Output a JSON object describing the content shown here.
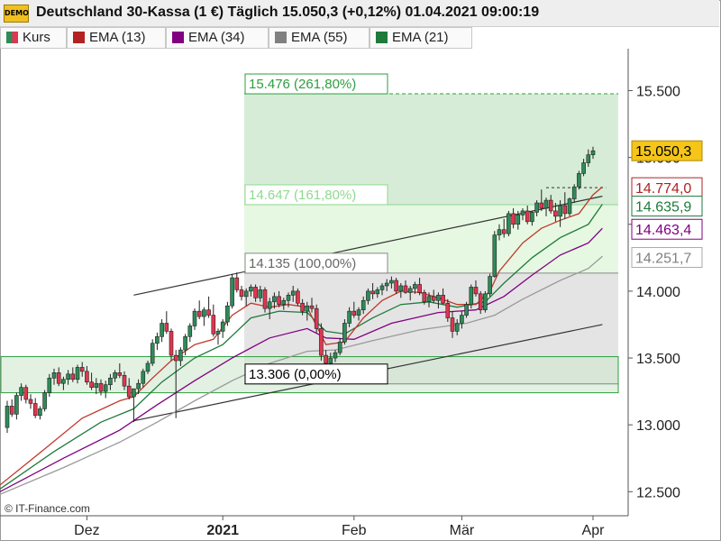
{
  "window": {
    "badge": "DEMO",
    "title": "Deutschland 30-Kassa (1 €) Täglich 15.050,3 (+0,12%) 01.04.2021 09:00:19"
  },
  "legend": [
    {
      "label": "Kurs",
      "color": "#2e8b57"
    },
    {
      "label": "EMA (13)",
      "color": "#b22222"
    },
    {
      "label": "EMA (34)",
      "color": "#800080"
    },
    {
      "label": "EMA (55)",
      "color": "#808080"
    },
    {
      "label": "EMA (21)",
      "color": "#1f7a3c"
    }
  ],
  "copyright": "© IT-Finance.com",
  "chart_data": {
    "type": "candlestick",
    "y_range": [
      12320,
      15800
    ],
    "y_ticks": [
      {
        "value": 12500,
        "label": "12.500"
      },
      {
        "value": 13000,
        "label": "13.000"
      },
      {
        "value": 13500,
        "label": "13.500"
      },
      {
        "value": 14000,
        "label": "14.000"
      },
      {
        "value": 14500,
        "label": "14.500"
      },
      {
        "value": 15000,
        "label": "15.000"
      },
      {
        "value": 15500,
        "label": "15.500"
      }
    ],
    "x_labels": [
      {
        "label": "Dez",
        "index": 17,
        "bold": false
      },
      {
        "label": "2021",
        "index": 46,
        "bold": true
      },
      {
        "label": "Feb",
        "index": 74,
        "bold": false
      },
      {
        "label": "Mär",
        "index": 97,
        "bold": false
      },
      {
        "label": "Apr",
        "index": 125,
        "bold": false
      }
    ],
    "price_tags": [
      {
        "label": "15.050,3",
        "value": 15050,
        "bg": "#f5c518",
        "fg": "#000000",
        "border": "#b08800"
      },
      {
        "label": "14.774,0",
        "value": 14774,
        "bg": "#ffffff",
        "fg": "#b22222",
        "border": "#b22222"
      },
      {
        "label": "14.635,9",
        "value": 14636,
        "bg": "#ffffff",
        "fg": "#1f7a3c",
        "border": "#1f7a3c"
      },
      {
        "label": "14.463,4",
        "value": 14463,
        "bg": "#ffffff",
        "fg": "#800080",
        "border": "#800080"
      },
      {
        "label": "14.251,7",
        "value": 14252,
        "bg": "#ffffff",
        "fg": "#808080",
        "border": "#aaaaaa"
      }
    ],
    "fib_levels": [
      {
        "label": "15.476 (261,80%)",
        "value": 15476,
        "color": "#2e9e40"
      },
      {
        "label": "14.647 (161,80%)",
        "value": 14647,
        "color": "#8fd98f"
      },
      {
        "label": "14.135 (100,00%)",
        "value": 14135,
        "color": "#888888"
      },
      {
        "label": "13.306 (0,00%)",
        "value": 13306,
        "color": "#000000"
      }
    ],
    "support_zone": [
      13240,
      13510
    ],
    "trend_lines": [
      {
        "from": [
          27,
          13970
        ],
        "to": [
          127,
          14710
        ]
      },
      {
        "from": [
          27,
          13030
        ],
        "to": [
          127,
          13750
        ]
      }
    ],
    "candles": [
      [
        12980,
        13180,
        12940,
        13140
      ],
      [
        13140,
        13190,
        13060,
        13080
      ],
      [
        13080,
        13240,
        13040,
        13220
      ],
      [
        13220,
        13310,
        13180,
        13280
      ],
      [
        13280,
        13300,
        13160,
        13190
      ],
      [
        13190,
        13230,
        13120,
        13160
      ],
      [
        13160,
        13200,
        13050,
        13070
      ],
      [
        13070,
        13140,
        13040,
        13120
      ],
      [
        13120,
        13260,
        13100,
        13240
      ],
      [
        13240,
        13380,
        13210,
        13350
      ],
      [
        13350,
        13420,
        13300,
        13390
      ],
      [
        13390,
        13430,
        13290,
        13310
      ],
      [
        13310,
        13360,
        13260,
        13340
      ],
      [
        13340,
        13410,
        13300,
        13380
      ],
      [
        13380,
        13430,
        13320,
        13340
      ],
      [
        13340,
        13450,
        13310,
        13430
      ],
      [
        13430,
        13470,
        13360,
        13400
      ],
      [
        13400,
        13440,
        13300,
        13320
      ],
      [
        13320,
        13390,
        13260,
        13280
      ],
      [
        13280,
        13350,
        13230,
        13310
      ],
      [
        13310,
        13340,
        13220,
        13250
      ],
      [
        13250,
        13330,
        13200,
        13300
      ],
      [
        13300,
        13380,
        13260,
        13350
      ],
      [
        13350,
        13410,
        13320,
        13390
      ],
      [
        13390,
        13460,
        13350,
        13370
      ],
      [
        13370,
        13400,
        13260,
        13290
      ],
      [
        13290,
        13350,
        13190,
        13210
      ],
      [
        13210,
        13240,
        13020,
        13270
      ],
      [
        13270,
        13340,
        13230,
        13310
      ],
      [
        13310,
        13420,
        13280,
        13400
      ],
      [
        13400,
        13480,
        13380,
        13460
      ],
      [
        13460,
        13640,
        13440,
        13610
      ],
      [
        13610,
        13690,
        13560,
        13660
      ],
      [
        13660,
        13790,
        13620,
        13760
      ],
      [
        13760,
        13850,
        13680,
        13700
      ],
      [
        13700,
        13720,
        13480,
        13520
      ],
      [
        13520,
        13560,
        13050,
        13480
      ],
      [
        13480,
        13580,
        13440,
        13560
      ],
      [
        13560,
        13680,
        13520,
        13660
      ],
      [
        13660,
        13760,
        13620,
        13740
      ],
      [
        13740,
        13870,
        13710,
        13850
      ],
      [
        13850,
        13930,
        13790,
        13810
      ],
      [
        13810,
        13880,
        13740,
        13860
      ],
      [
        13860,
        13960,
        13800,
        13820
      ],
      [
        13820,
        13900,
        13660,
        13680
      ],
      [
        13680,
        13720,
        13600,
        13700
      ],
      [
        13700,
        13790,
        13650,
        13770
      ],
      [
        13770,
        13920,
        13740,
        13890
      ],
      [
        13890,
        14130,
        13870,
        14100
      ],
      [
        14100,
        14140,
        13990,
        14010
      ],
      [
        14010,
        14040,
        13930,
        13960
      ],
      [
        13960,
        14020,
        13890,
        14000
      ],
      [
        14000,
        14050,
        13960,
        14030
      ],
      [
        14030,
        14050,
        13920,
        13950
      ],
      [
        13950,
        14040,
        13920,
        14010
      ],
      [
        14010,
        14030,
        13840,
        13870
      ],
      [
        13870,
        13950,
        13790,
        13920
      ],
      [
        13920,
        13990,
        13870,
        13960
      ],
      [
        13960,
        14000,
        13880,
        13900
      ],
      [
        13900,
        13950,
        13860,
        13930
      ],
      [
        13930,
        13990,
        13880,
        13970
      ],
      [
        13970,
        14040,
        13920,
        14000
      ],
      [
        14000,
        14020,
        13890,
        13910
      ],
      [
        13910,
        13940,
        13820,
        13850
      ],
      [
        13850,
        13920,
        13780,
        13890
      ],
      [
        13890,
        13950,
        13840,
        13870
      ],
      [
        13870,
        13900,
        13690,
        13720
      ],
      [
        13720,
        13760,
        13480,
        13520
      ],
      [
        13520,
        13560,
        13420,
        13460
      ],
      [
        13460,
        13540,
        13430,
        13500
      ],
      [
        13500,
        13560,
        13470,
        13540
      ],
      [
        13540,
        13650,
        13520,
        13620
      ],
      [
        13620,
        13790,
        13600,
        13760
      ],
      [
        13760,
        13880,
        13730,
        13850
      ],
      [
        13850,
        13920,
        13800,
        13820
      ],
      [
        13820,
        13880,
        13780,
        13860
      ],
      [
        13860,
        13960,
        13830,
        13930
      ],
      [
        13930,
        14020,
        13900,
        14000
      ],
      [
        14000,
        14060,
        13940,
        13980
      ],
      [
        13980,
        14030,
        13950,
        14010
      ],
      [
        14010,
        14060,
        13970,
        14040
      ],
      [
        14040,
        14090,
        14000,
        14060
      ],
      [
        14060,
        14110,
        14020,
        14080
      ],
      [
        14080,
        14100,
        13980,
        14000
      ],
      [
        14000,
        14060,
        13950,
        14040
      ],
      [
        14040,
        14080,
        13980,
        13990
      ],
      [
        13990,
        14040,
        13930,
        14020
      ],
      [
        14020,
        14070,
        13980,
        14050
      ],
      [
        14050,
        14100,
        13970,
        13990
      ],
      [
        13990,
        14010,
        13900,
        13920
      ],
      [
        13920,
        13990,
        13880,
        13960
      ],
      [
        13960,
        14010,
        13910,
        13930
      ],
      [
        13930,
        13990,
        13870,
        13970
      ],
      [
        13970,
        14020,
        13900,
        13910
      ],
      [
        13910,
        13940,
        13770,
        13800
      ],
      [
        13800,
        13850,
        13650,
        13700
      ],
      [
        13700,
        13790,
        13670,
        13760
      ],
      [
        13760,
        13850,
        13720,
        13820
      ],
      [
        13820,
        13920,
        13800,
        13900
      ],
      [
        13900,
        14050,
        13870,
        14030
      ],
      [
        14030,
        14080,
        13960,
        13980
      ],
      [
        13980,
        14000,
        13830,
        13860
      ],
      [
        13860,
        14000,
        13840,
        13980
      ],
      [
        13980,
        14130,
        13960,
        14110
      ],
      [
        14110,
        14450,
        14100,
        14420
      ],
      [
        14420,
        14500,
        14380,
        14460
      ],
      [
        14460,
        14540,
        14400,
        14430
      ],
      [
        14430,
        14600,
        14410,
        14580
      ],
      [
        14580,
        14620,
        14470,
        14500
      ],
      [
        14500,
        14600,
        14460,
        14570
      ],
      [
        14570,
        14620,
        14530,
        14600
      ],
      [
        14600,
        14640,
        14500,
        14520
      ],
      [
        14520,
        14600,
        14490,
        14590
      ],
      [
        14590,
        14680,
        14560,
        14660
      ],
      [
        14660,
        14760,
        14600,
        14620
      ],
      [
        14620,
        14700,
        14560,
        14680
      ],
      [
        14680,
        14720,
        14580,
        14600
      ],
      [
        14600,
        14660,
        14520,
        14560
      ],
      [
        14560,
        14680,
        14480,
        14640
      ],
      [
        14640,
        14740,
        14540,
        14580
      ],
      [
        14580,
        14700,
        14560,
        14690
      ],
      [
        14690,
        14800,
        14660,
        14780
      ],
      [
        14780,
        14900,
        14760,
        14880
      ],
      [
        14880,
        14990,
        14860,
        14960
      ],
      [
        14960,
        15060,
        14930,
        15020
      ],
      [
        15020,
        15080,
        14990,
        15050
      ]
    ],
    "ema13": [
      [
        0,
        12550
      ],
      [
        8,
        12820
      ],
      [
        16,
        13050
      ],
      [
        24,
        13180
      ],
      [
        27,
        13210
      ],
      [
        31,
        13350
      ],
      [
        35,
        13480
      ],
      [
        40,
        13600
      ],
      [
        44,
        13640
      ],
      [
        48,
        13820
      ],
      [
        52,
        13910
      ],
      [
        56,
        13880
      ],
      [
        60,
        13900
      ],
      [
        64,
        13880
      ],
      [
        68,
        13600
      ],
      [
        72,
        13620
      ],
      [
        76,
        13800
      ],
      [
        80,
        13930
      ],
      [
        84,
        14000
      ],
      [
        88,
        13990
      ],
      [
        92,
        13950
      ],
      [
        96,
        13900
      ],
      [
        100,
        13900
      ],
      [
        103,
        14000
      ],
      [
        105,
        14150
      ],
      [
        110,
        14360
      ],
      [
        114,
        14470
      ],
      [
        118,
        14530
      ],
      [
        122,
        14580
      ],
      [
        125,
        14720
      ],
      [
        127,
        14780
      ]
    ],
    "ema21": [
      [
        0,
        12520
      ],
      [
        10,
        12800
      ],
      [
        20,
        13020
      ],
      [
        27,
        13120
      ],
      [
        33,
        13320
      ],
      [
        40,
        13500
      ],
      [
        46,
        13600
      ],
      [
        52,
        13800
      ],
      [
        58,
        13850
      ],
      [
        64,
        13840
      ],
      [
        68,
        13700
      ],
      [
        72,
        13680
      ],
      [
        78,
        13800
      ],
      [
        84,
        13900
      ],
      [
        90,
        13920
      ],
      [
        96,
        13880
      ],
      [
        102,
        13920
      ],
      [
        106,
        14060
      ],
      [
        112,
        14250
      ],
      [
        118,
        14400
      ],
      [
        124,
        14500
      ],
      [
        127,
        14650
      ]
    ],
    "ema34": [
      [
        0,
        12500
      ],
      [
        12,
        12750
      ],
      [
        24,
        12960
      ],
      [
        32,
        13150
      ],
      [
        40,
        13330
      ],
      [
        48,
        13500
      ],
      [
        56,
        13650
      ],
      [
        64,
        13720
      ],
      [
        68,
        13650
      ],
      [
        74,
        13640
      ],
      [
        82,
        13760
      ],
      [
        92,
        13840
      ],
      [
        100,
        13860
      ],
      [
        106,
        13960
      ],
      [
        112,
        14120
      ],
      [
        118,
        14270
      ],
      [
        124,
        14360
      ],
      [
        127,
        14470
      ]
    ],
    "ema55": [
      [
        0,
        12480
      ],
      [
        12,
        12680
      ],
      [
        24,
        12870
      ],
      [
        32,
        13020
      ],
      [
        40,
        13180
      ],
      [
        48,
        13330
      ],
      [
        56,
        13460
      ],
      [
        64,
        13550
      ],
      [
        70,
        13560
      ],
      [
        78,
        13630
      ],
      [
        88,
        13710
      ],
      [
        98,
        13760
      ],
      [
        104,
        13820
      ],
      [
        110,
        13940
      ],
      [
        118,
        14080
      ],
      [
        124,
        14170
      ],
      [
        127,
        14260
      ]
    ]
  }
}
